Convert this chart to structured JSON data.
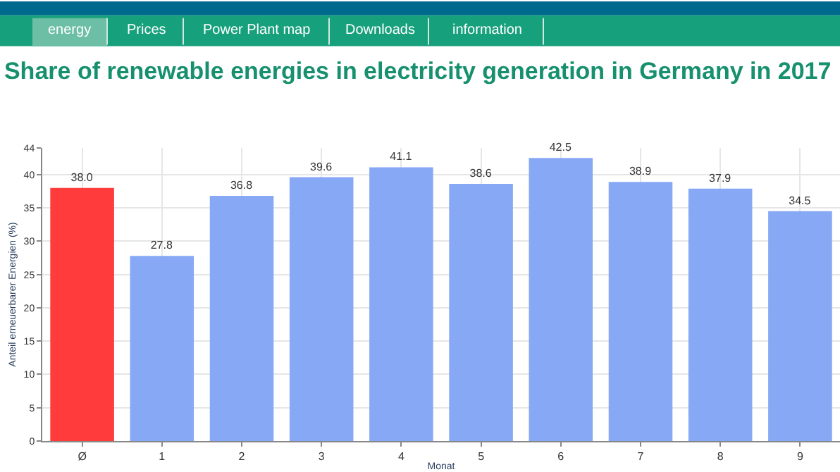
{
  "chart_data": {
    "type": "bar",
    "title": "Share of renewable energies in electricity generation in Germany in 2017",
    "xlabel": "Monat",
    "ylabel": "Anteil erneuerbarer Energien (%)",
    "annotations": [
      "energy",
      "Prices",
      "Power Plant map",
      "Downloads",
      "information"
    ],
    "categories": [
      "Ø",
      "1",
      "2",
      "3",
      "4",
      "5",
      "6",
      "7",
      "8",
      "9"
    ],
    "values": [
      38.0,
      27.8,
      36.8,
      39.6,
      41.1,
      38.6,
      42.5,
      38.9,
      37.9,
      34.5
    ],
    "value_labels": [
      "38.0",
      "27.8",
      "36.8",
      "39.6",
      "41.1",
      "38.6",
      "42.5",
      "38.9",
      "37.9",
      "34.5"
    ],
    "colors": [
      "#ff3b3b",
      "#86a8f5",
      "#86a8f5",
      "#86a8f5",
      "#86a8f5",
      "#86a8f5",
      "#86a8f5",
      "#86a8f5",
      "#86a8f5",
      "#86a8f5"
    ],
    "ylim": [
      0,
      44
    ],
    "yticks": [
      0,
      5,
      10,
      15,
      20,
      25,
      30,
      35,
      40,
      44
    ],
    "grid": true,
    "legend": false
  }
}
